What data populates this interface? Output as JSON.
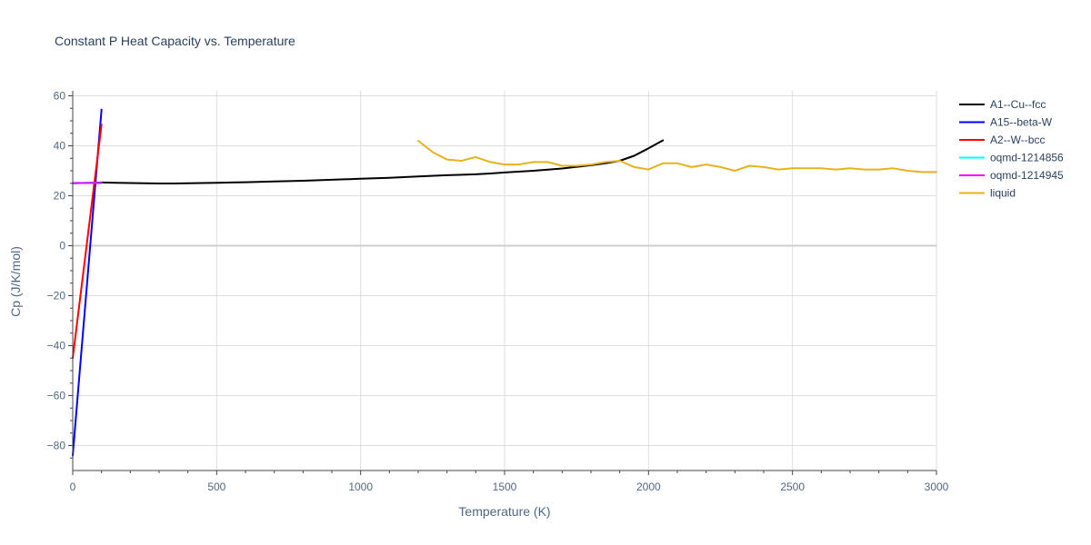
{
  "chart_data": {
    "type": "line",
    "title": "Constant P Heat Capacity vs. Temperature",
    "xlabel": "Temperature (K)",
    "ylabel": "Cp (J/K/mol)",
    "xlim": [
      0,
      3000
    ],
    "ylim": [
      -90,
      62
    ],
    "xticks": [
      0,
      500,
      1000,
      1500,
      2000,
      2500,
      3000
    ],
    "xtick_labels": [
      "0",
      "500",
      "1000",
      "1500",
      "2000",
      "2500",
      "3000"
    ],
    "yticks": [
      -80,
      -60,
      -40,
      -20,
      0,
      20,
      40,
      60
    ],
    "ytick_labels": [
      "−80",
      "−60",
      "−40",
      "−20",
      "0",
      "20",
      "40",
      "60"
    ],
    "grid": true,
    "legend_position": "top-right",
    "series": [
      {
        "name": "A1--Cu--fcc",
        "color": "#000000",
        "x": [
          0,
          100,
          200,
          300,
          350,
          400,
          500,
          600,
          700,
          800,
          900,
          1000,
          1100,
          1200,
          1300,
          1400,
          1450,
          1500,
          1600,
          1700,
          1800,
          1850,
          1900,
          1950,
          2000,
          2050
        ],
        "y": [
          25.0,
          25.3,
          25.1,
          24.9,
          24.9,
          25.0,
          25.2,
          25.4,
          25.7,
          26.0,
          26.4,
          26.8,
          27.2,
          27.7,
          28.2,
          28.6,
          28.9,
          29.3,
          30.0,
          30.9,
          32.2,
          33.0,
          34.0,
          36.0,
          39.0,
          42.2
        ]
      },
      {
        "name": "A15--beta-W",
        "color": "#0000ff",
        "x": [
          0,
          100
        ],
        "y": [
          -84,
          54.5
        ]
      },
      {
        "name": "A2--W--bcc",
        "color": "#ff0000",
        "x": [
          0,
          100
        ],
        "y": [
          -45,
          48.5
        ]
      },
      {
        "name": "oqmd-1214856",
        "color": "#00ffff",
        "x": [
          0,
          100
        ],
        "y": [
          25.2,
          25.2
        ]
      },
      {
        "name": "oqmd-1214945",
        "color": "#ff00ff",
        "x": [
          0,
          100
        ],
        "y": [
          25.1,
          25.1
        ]
      },
      {
        "name": "liquid",
        "color": "#e8b21c",
        "x": [
          1200,
          1250,
          1300,
          1350,
          1400,
          1450,
          1500,
          1550,
          1600,
          1650,
          1700,
          1750,
          1800,
          1850,
          1900,
          1950,
          2000,
          2050,
          2100,
          2150,
          2200,
          2250,
          2300,
          2350,
          2400,
          2450,
          2500,
          2550,
          2600,
          2650,
          2700,
          2750,
          2800,
          2850,
          2900,
          2950,
          3000
        ],
        "y": [
          42.0,
          37.5,
          34.5,
          34.0,
          35.5,
          33.5,
          32.5,
          32.5,
          33.5,
          33.5,
          32.0,
          32.0,
          32.5,
          33.5,
          34.0,
          31.5,
          30.5,
          33.0,
          33.0,
          31.5,
          32.5,
          31.5,
          30.0,
          32.0,
          31.5,
          30.5,
          31.0,
          31.0,
          31.0,
          30.5,
          31.0,
          30.5,
          30.5,
          31.0,
          30.0,
          29.5,
          29.5
        ]
      }
    ]
  }
}
